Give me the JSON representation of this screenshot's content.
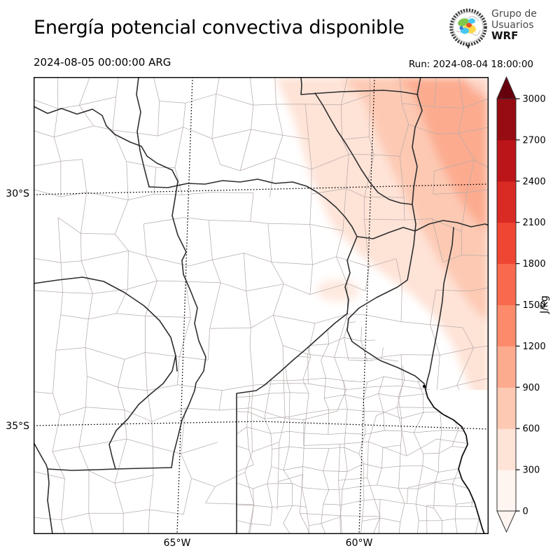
{
  "header": {
    "title": "Energía potencial convectiva disponible",
    "valid_time": "2024-08-05 00:00:00 ARG",
    "run_time": "Run: 2024-08-04 18:00:00",
    "logo": {
      "line1": "Grupo de",
      "line2": "Usuarios",
      "line3": "WRF"
    }
  },
  "map": {
    "lat_ticks": [
      "30°S",
      "35°S"
    ],
    "lon_ticks": [
      "65°W",
      "60°W"
    ]
  },
  "colorbar": {
    "unit": "J/kg",
    "tick_values": [
      "0",
      "300",
      "600",
      "900",
      "1200",
      "1500",
      "1800",
      "2100",
      "2400",
      "2700",
      "3000"
    ],
    "segment_colors_bottom_to_top": [
      "#fff5f0",
      "#fee3d7",
      "#fdc9b3",
      "#fcab8f",
      "#fc8a6b",
      "#f9694d",
      "#ef4633",
      "#d92a23",
      "#bb151a",
      "#970b13"
    ],
    "over_color": "#67000d",
    "under_color": "#fff5f0"
  },
  "chart_data": {
    "type": "heatmap",
    "title": "Energía potencial convectiva disponible",
    "variable": "CAPE",
    "unit": "J/kg",
    "valid_time": "2024-08-05 00:00:00 ARG",
    "run_time": "2024-08-04 18:00:00",
    "colorbar_levels": [
      0,
      300,
      600,
      900,
      1200,
      1500,
      1800,
      2100,
      2400,
      2700,
      3000
    ],
    "lat_ticks": [
      "30°S",
      "35°S"
    ],
    "lon_ticks": [
      "65°W",
      "60°W"
    ],
    "depicted_field": "CAPE near 0 J/kg over most of the domain; values rising to roughly 900-1200 J/kg toward the northeast corner of the map"
  }
}
